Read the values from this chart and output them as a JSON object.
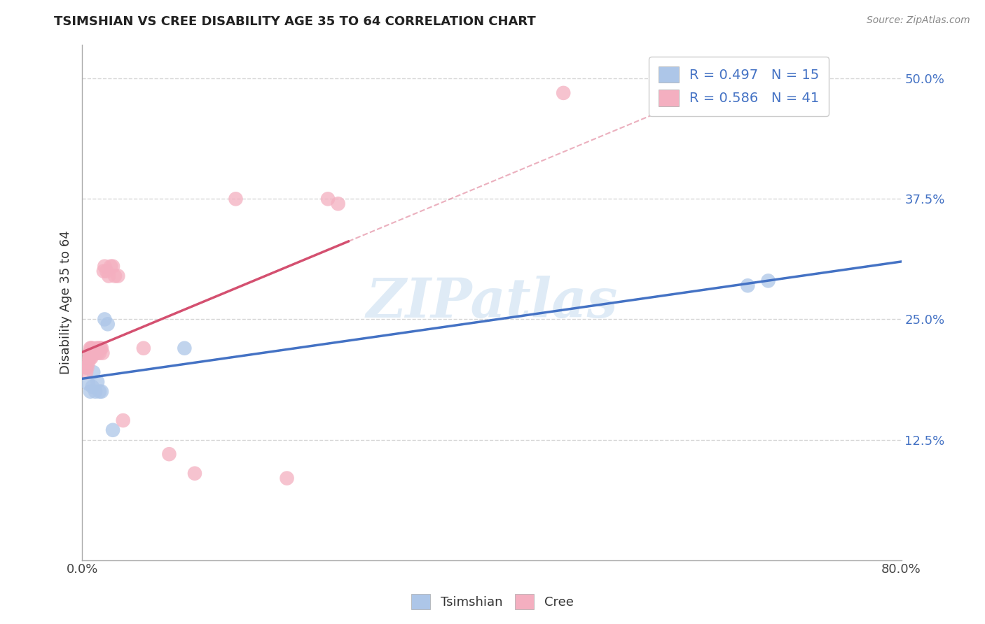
{
  "title": "TSIMSHIAN VS CREE DISABILITY AGE 35 TO 64 CORRELATION CHART",
  "source": "Source: ZipAtlas.com",
  "ylabel": "Disability Age 35 to 64",
  "xlim": [
    0.0,
    0.8
  ],
  "ylim": [
    0.0,
    0.535
  ],
  "yticks_right": [
    0.125,
    0.25,
    0.375,
    0.5
  ],
  "ytick_labels_right": [
    "12.5%",
    "25.0%",
    "37.5%",
    "50.0%"
  ],
  "tsimshian_color": "#adc6e8",
  "cree_color": "#f4afc0",
  "tsimshian_line_color": "#4472c4",
  "cree_line_color": "#d45070",
  "tsimshian_R": 0.497,
  "tsimshian_N": 15,
  "cree_R": 0.586,
  "cree_N": 41,
  "watermark": "ZIPatlas",
  "tsimshian_x": [
    0.004,
    0.006,
    0.008,
    0.01,
    0.011,
    0.013,
    0.015,
    0.017,
    0.019,
    0.022,
    0.025,
    0.03,
    0.1,
    0.65,
    0.67
  ],
  "tsimshian_y": [
    0.2,
    0.183,
    0.175,
    0.18,
    0.195,
    0.175,
    0.185,
    0.175,
    0.175,
    0.25,
    0.245,
    0.135,
    0.22,
    0.285,
    0.29
  ],
  "cree_x": [
    0.003,
    0.004,
    0.005,
    0.006,
    0.007,
    0.007,
    0.008,
    0.008,
    0.009,
    0.009,
    0.01,
    0.01,
    0.011,
    0.012,
    0.012,
    0.013,
    0.013,
    0.014,
    0.015,
    0.016,
    0.017,
    0.018,
    0.019,
    0.02,
    0.021,
    0.022,
    0.024,
    0.026,
    0.028,
    0.03,
    0.032,
    0.035,
    0.04,
    0.06,
    0.085,
    0.11,
    0.15,
    0.2,
    0.24,
    0.25,
    0.47
  ],
  "cree_y": [
    0.2,
    0.195,
    0.2,
    0.205,
    0.21,
    0.215,
    0.21,
    0.22,
    0.21,
    0.22,
    0.215,
    0.22,
    0.215,
    0.215,
    0.215,
    0.215,
    0.215,
    0.22,
    0.215,
    0.22,
    0.215,
    0.22,
    0.22,
    0.215,
    0.3,
    0.305,
    0.3,
    0.295,
    0.305,
    0.305,
    0.295,
    0.295,
    0.145,
    0.22,
    0.11,
    0.09,
    0.375,
    0.085,
    0.375,
    0.37,
    0.485
  ],
  "background_color": "#ffffff",
  "grid_color": "#cccccc"
}
